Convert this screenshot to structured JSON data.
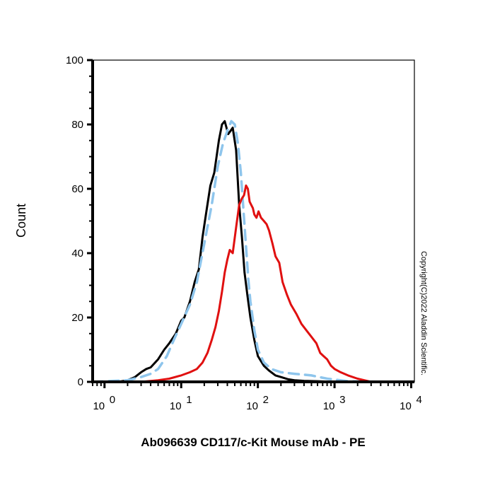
{
  "chart_data": {
    "type": "line",
    "title": "",
    "xlabel": "Ab096639 CD117/c-Kit Mouse mAb - PE",
    "ylabel": "Count",
    "xscale": "log",
    "xlim": [
      0.7,
      11000
    ],
    "ylim": [
      0,
      100
    ],
    "x_ticks": [
      {
        "value": 1,
        "base": "10",
        "exp": "0"
      },
      {
        "value": 10,
        "base": "10",
        "exp": "1"
      },
      {
        "value": 100,
        "base": "10",
        "exp": "2"
      },
      {
        "value": 1000,
        "base": "10",
        "exp": "3"
      },
      {
        "value": 10000,
        "base": "10",
        "exp": "4"
      }
    ],
    "y_ticks": [
      {
        "value": 0,
        "label": "0"
      },
      {
        "value": 20,
        "label": "20"
      },
      {
        "value": 40,
        "label": "40"
      },
      {
        "value": 60,
        "label": "60"
      },
      {
        "value": 80,
        "label": "80"
      },
      {
        "value": 100,
        "label": "100"
      }
    ],
    "grid": false,
    "legend": "none",
    "annotation": "Copyright(C)2022 Aladdin Scientific.",
    "series": [
      {
        "color": "#000000",
        "dash": "solid",
        "x": [
          0.7,
          1.5,
          2.0,
          2.5,
          3.0,
          3.5,
          4.0,
          5.0,
          6.0,
          7.0,
          8.5,
          10,
          11,
          13,
          15,
          17,
          19,
          21,
          24,
          27,
          31,
          34,
          37,
          39,
          41,
          44,
          47,
          52,
          57,
          62,
          67,
          73,
          80,
          90,
          100,
          120,
          140,
          170,
          200,
          250,
          300,
          400,
          600,
          1000,
          3000
        ],
        "y": [
          0,
          0,
          0.5,
          1.5,
          3,
          4,
          4.5,
          7,
          10,
          12,
          15,
          19,
          20,
          25,
          31,
          35,
          45,
          52,
          61,
          65,
          75,
          80,
          81,
          79,
          77,
          78,
          79,
          72,
          55,
          45,
          34,
          27,
          20,
          13,
          8,
          5,
          3.5,
          2,
          1.5,
          0.8,
          0.5,
          0.3,
          0.2,
          0,
          0
        ]
      },
      {
        "color": "#8ec5ec",
        "dash": "dashed",
        "x": [
          0.7,
          2.0,
          3.0,
          4.0,
          5.0,
          6.5,
          8.0,
          10,
          13,
          16,
          20,
          25,
          30,
          35,
          40,
          45,
          50,
          55,
          60,
          65,
          70,
          75,
          80,
          90,
          100,
          120,
          150,
          200,
          300,
          500,
          800,
          1500,
          3000
        ],
        "y": [
          0,
          0.5,
          1.5,
          2.5,
          4,
          8,
          13,
          18,
          24,
          31,
          43,
          55,
          67,
          74,
          78,
          81,
          80,
          74,
          65,
          53,
          42,
          32,
          25,
          16,
          10,
          6,
          4,
          3,
          2.5,
          2,
          1,
          0.2,
          0
        ]
      },
      {
        "color": "#e01010",
        "dash": "solid",
        "x": [
          0.7,
          3.0,
          5.0,
          7.0,
          10,
          13,
          16,
          19,
          22,
          25,
          28,
          31,
          34,
          37,
          40,
          43,
          47,
          52,
          57,
          62,
          66,
          70,
          74,
          78,
          82,
          86,
          90,
          96,
          102,
          110,
          120,
          130,
          140,
          155,
          170,
          190,
          210,
          240,
          270,
          320,
          370,
          430,
          500,
          580,
          650,
          720,
          800,
          900,
          1000,
          1200,
          1500,
          2000,
          3000,
          5000,
          7000,
          10000
        ],
        "y": [
          0,
          0,
          0.5,
          1,
          2,
          3,
          4,
          6,
          9,
          13,
          17,
          22,
          28,
          34,
          38,
          41,
          40,
          48,
          55,
          57,
          58,
          61,
          60,
          56,
          55,
          54,
          52,
          51,
          53,
          51,
          50,
          49,
          47,
          43,
          39,
          37,
          31,
          27,
          24,
          21,
          18,
          16,
          14,
          12,
          9,
          8,
          7,
          5,
          4,
          3,
          2,
          1,
          0,
          0,
          0,
          0
        ]
      }
    ]
  }
}
